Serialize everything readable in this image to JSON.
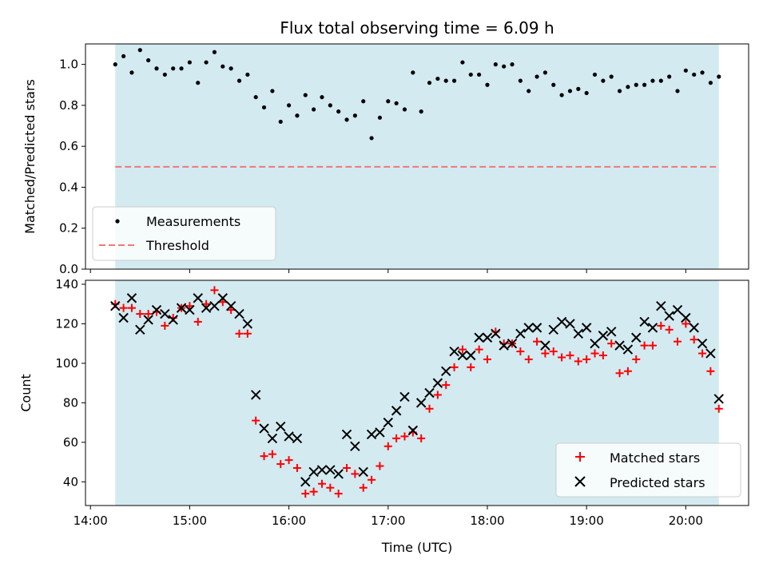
{
  "chart_data": [
    {
      "type": "scatter",
      "title": "Flux total observing time = 6.09 h",
      "xlabel": "",
      "ylabel": "Matched/Predicted stars",
      "ylim": [
        0,
        1.1
      ],
      "xlim": [
        "13:57",
        "20:38"
      ],
      "yticks": [
        "0.0",
        "0.2",
        "0.4",
        "0.6",
        "0.8",
        "1.0"
      ],
      "yticks_values": [
        0,
        0.2,
        0.4,
        0.6,
        0.8,
        1.0
      ],
      "observing_window": [
        "14:15",
        "20:20"
      ],
      "threshold": 0.5,
      "legend_placement": "lower-left",
      "series": [
        {
          "name": "Measurements",
          "x": [
            "14:15",
            "14:20",
            "14:25",
            "14:30",
            "14:35",
            "14:40",
            "14:45",
            "14:50",
            "14:55",
            "15:00",
            "15:05",
            "15:10",
            "15:15",
            "15:20",
            "15:25",
            "15:30",
            "15:35",
            "15:40",
            "15:45",
            "15:50",
            "15:55",
            "16:00",
            "16:05",
            "16:10",
            "16:15",
            "16:20",
            "16:25",
            "16:30",
            "16:35",
            "16:40",
            "16:45",
            "16:50",
            "16:55",
            "17:00",
            "17:05",
            "17:10",
            "17:15",
            "17:20",
            "17:25",
            "17:30",
            "17:35",
            "17:40",
            "17:45",
            "17:50",
            "17:55",
            "18:00",
            "18:05",
            "18:10",
            "18:15",
            "18:20",
            "18:25",
            "18:30",
            "18:35",
            "18:40",
            "18:45",
            "18:50",
            "18:55",
            "19:00",
            "19:05",
            "19:10",
            "19:15",
            "19:20",
            "19:25",
            "19:30",
            "19:35",
            "19:40",
            "19:45",
            "19:50",
            "19:55",
            "20:00",
            "20:05",
            "20:10",
            "20:15",
            "20:20"
          ],
          "y": [
            1.0,
            1.04,
            0.96,
            1.07,
            1.02,
            0.98,
            0.95,
            0.98,
            0.98,
            1.01,
            0.91,
            1.01,
            1.06,
            0.99,
            0.98,
            0.92,
            0.95,
            0.84,
            0.79,
            0.87,
            0.72,
            0.8,
            0.75,
            0.85,
            0.78,
            0.84,
            0.8,
            0.77,
            0.73,
            0.75,
            0.82,
            0.64,
            0.74,
            0.82,
            0.81,
            0.78,
            0.96,
            0.77,
            0.91,
            0.93,
            0.92,
            0.92,
            1.01,
            0.95,
            0.95,
            0.9,
            1.0,
            0.99,
            1.0,
            0.92,
            0.87,
            0.94,
            0.96,
            0.9,
            0.85,
            0.87,
            0.88,
            0.86,
            0.95,
            0.92,
            0.94,
            0.87,
            0.89,
            0.9,
            0.9,
            0.92,
            0.92,
            0.94,
            0.87,
            0.97,
            0.95,
            0.96,
            0.91,
            0.94
          ]
        },
        {
          "name": "Threshold",
          "y": 0.5
        }
      ]
    },
    {
      "type": "scatter",
      "title": "",
      "xlabel": "Time (UTC)",
      "ylabel": "Count",
      "ylim": [
        28,
        142
      ],
      "xlim": [
        "13:57",
        "20:38"
      ],
      "xticks": [
        "14:00",
        "15:00",
        "16:00",
        "17:00",
        "18:00",
        "19:00",
        "20:00"
      ],
      "yticks": [
        "40",
        "60",
        "80",
        "100",
        "120",
        "140"
      ],
      "yticks_values": [
        40,
        60,
        80,
        100,
        120,
        140
      ],
      "observing_window": [
        "14:15",
        "20:20"
      ],
      "legend_placement": "lower-right",
      "x": [
        "14:15",
        "14:20",
        "14:25",
        "14:30",
        "14:35",
        "14:40",
        "14:45",
        "14:50",
        "14:55",
        "15:00",
        "15:05",
        "15:10",
        "15:15",
        "15:20",
        "15:25",
        "15:30",
        "15:35",
        "15:40",
        "15:45",
        "15:50",
        "15:55",
        "16:00",
        "16:05",
        "16:10",
        "16:15",
        "16:20",
        "16:25",
        "16:30",
        "16:35",
        "16:40",
        "16:45",
        "16:50",
        "16:55",
        "17:00",
        "17:05",
        "17:10",
        "17:15",
        "17:20",
        "17:25",
        "17:30",
        "17:35",
        "17:40",
        "17:45",
        "17:50",
        "17:55",
        "18:00",
        "18:05",
        "18:10",
        "18:15",
        "18:20",
        "18:25",
        "18:30",
        "18:35",
        "18:40",
        "18:45",
        "18:50",
        "18:55",
        "19:00",
        "19:05",
        "19:10",
        "19:15",
        "19:20",
        "19:25",
        "19:30",
        "19:35",
        "19:40",
        "19:45",
        "19:50",
        "19:55",
        "20:00",
        "20:05",
        "20:10",
        "20:15",
        "20:20"
      ],
      "series": [
        {
          "name": "Matched stars",
          "marker": "plus",
          "color": "#ff0000",
          "values": [
            130,
            128,
            128,
            125,
            125,
            126,
            119,
            123,
            128,
            129,
            121,
            130,
            137,
            131,
            127,
            115,
            115,
            71,
            53,
            54,
            49,
            51,
            47,
            34,
            35,
            39,
            37,
            34,
            47,
            44,
            37,
            41,
            48,
            58,
            62,
            63,
            65,
            62,
            77,
            84,
            89,
            98,
            107,
            98,
            107,
            102,
            116,
            110,
            110,
            106,
            102,
            111,
            105,
            106,
            103,
            104,
            101,
            102,
            105,
            104,
            110,
            95,
            96,
            102,
            109,
            109,
            119,
            117,
            111,
            120,
            112,
            105,
            96,
            77
          ]
        },
        {
          "name": "Predicted stars",
          "marker": "x",
          "color": "#000000",
          "values": [
            129,
            123,
            133,
            117,
            122,
            127,
            125,
            122,
            128,
            127,
            133,
            128,
            129,
            133,
            129,
            125,
            120,
            84,
            67,
            62,
            68,
            63,
            62,
            40,
            45,
            46,
            46,
            44,
            64,
            58,
            45,
            64,
            65,
            70,
            76,
            83,
            66,
            80,
            85,
            90,
            96,
            106,
            104,
            104,
            113,
            113,
            115,
            109,
            110,
            115,
            118,
            118,
            109,
            117,
            121,
            120,
            115,
            118,
            110,
            114,
            116,
            109,
            107,
            113,
            121,
            118,
            129,
            124,
            127,
            123,
            118,
            110,
            105,
            82
          ]
        }
      ]
    }
  ]
}
